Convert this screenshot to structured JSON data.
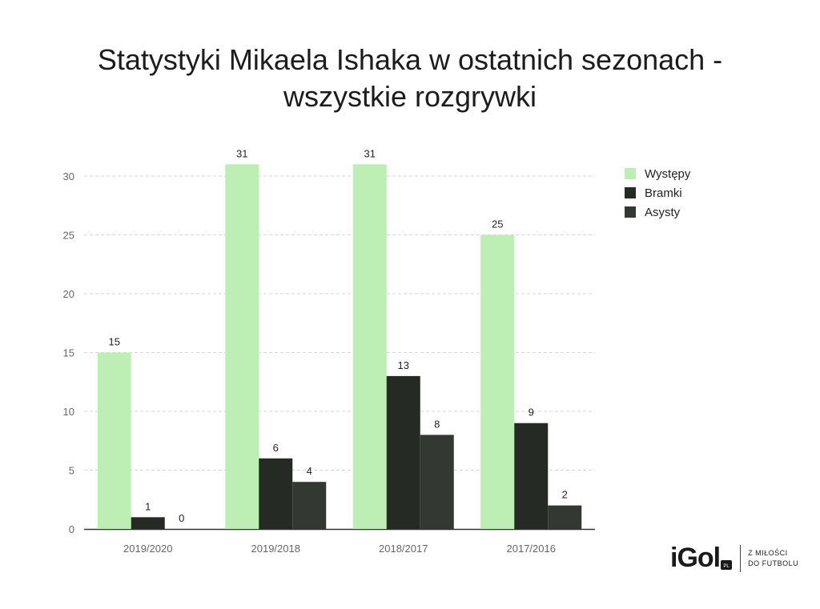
{
  "title_lines": [
    "Statystyki Mikaela Ishaka w ostatnich sezonach -",
    "wszystkie rozgrywki"
  ],
  "brand": {
    "logo": "iGol",
    "badge": "PL",
    "tagline_line1": "Z MIŁOŚCI",
    "tagline_line2": "DO FUTBOLU"
  },
  "chart_data": {
    "type": "bar",
    "title": "Statystyki Mikaela Ishaka w ostatnich sezonach - wszystkie rozgrywki",
    "categories": [
      "2019/2020",
      "2019/2018",
      "2018/2017",
      "2017/2016"
    ],
    "series": [
      {
        "name": "Występy",
        "values": [
          15,
          31,
          31,
          25
        ],
        "color": "#bdeeb3"
      },
      {
        "name": "Bramki",
        "values": [
          1,
          6,
          13,
          9
        ],
        "color": "#262a25"
      },
      {
        "name": "Asysty",
        "values": [
          0,
          4,
          8,
          2
        ],
        "color": "#343832"
      }
    ],
    "ylim": [
      0,
      32
    ],
    "yticks": [
      0,
      5,
      10,
      15,
      20,
      25,
      30
    ],
    "grid": true,
    "legend": "right",
    "xlabel": "",
    "ylabel": ""
  }
}
